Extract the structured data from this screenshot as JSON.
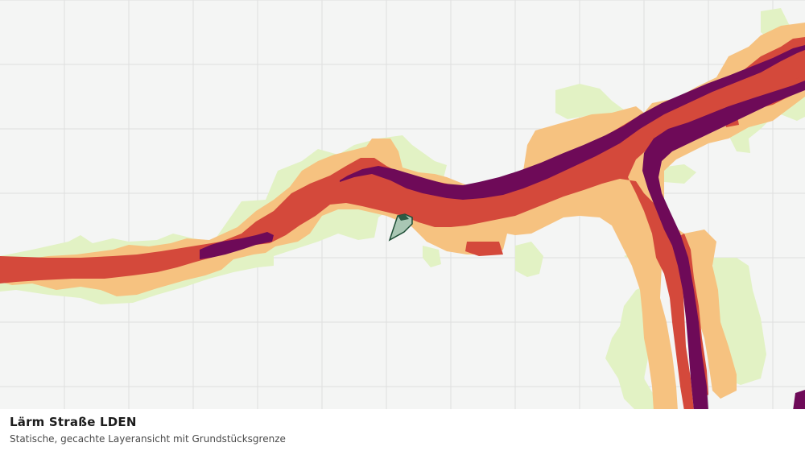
{
  "caption": {
    "title": "Lärm Straße LDEN",
    "subtitle": "Statische, gecachte Layeransicht mit Grundstücksgrenze"
  },
  "colors": {
    "background": "#f4f5f4",
    "grid": "#dedfde",
    "zone_outer": "#e2f2c4",
    "zone_mid": "#f6c280",
    "zone_high": "#d4493b",
    "zone_peak": "#6e0a58",
    "parcel_fill": "#a9c7b4",
    "parcel_stroke": "#1d4d35"
  }
}
